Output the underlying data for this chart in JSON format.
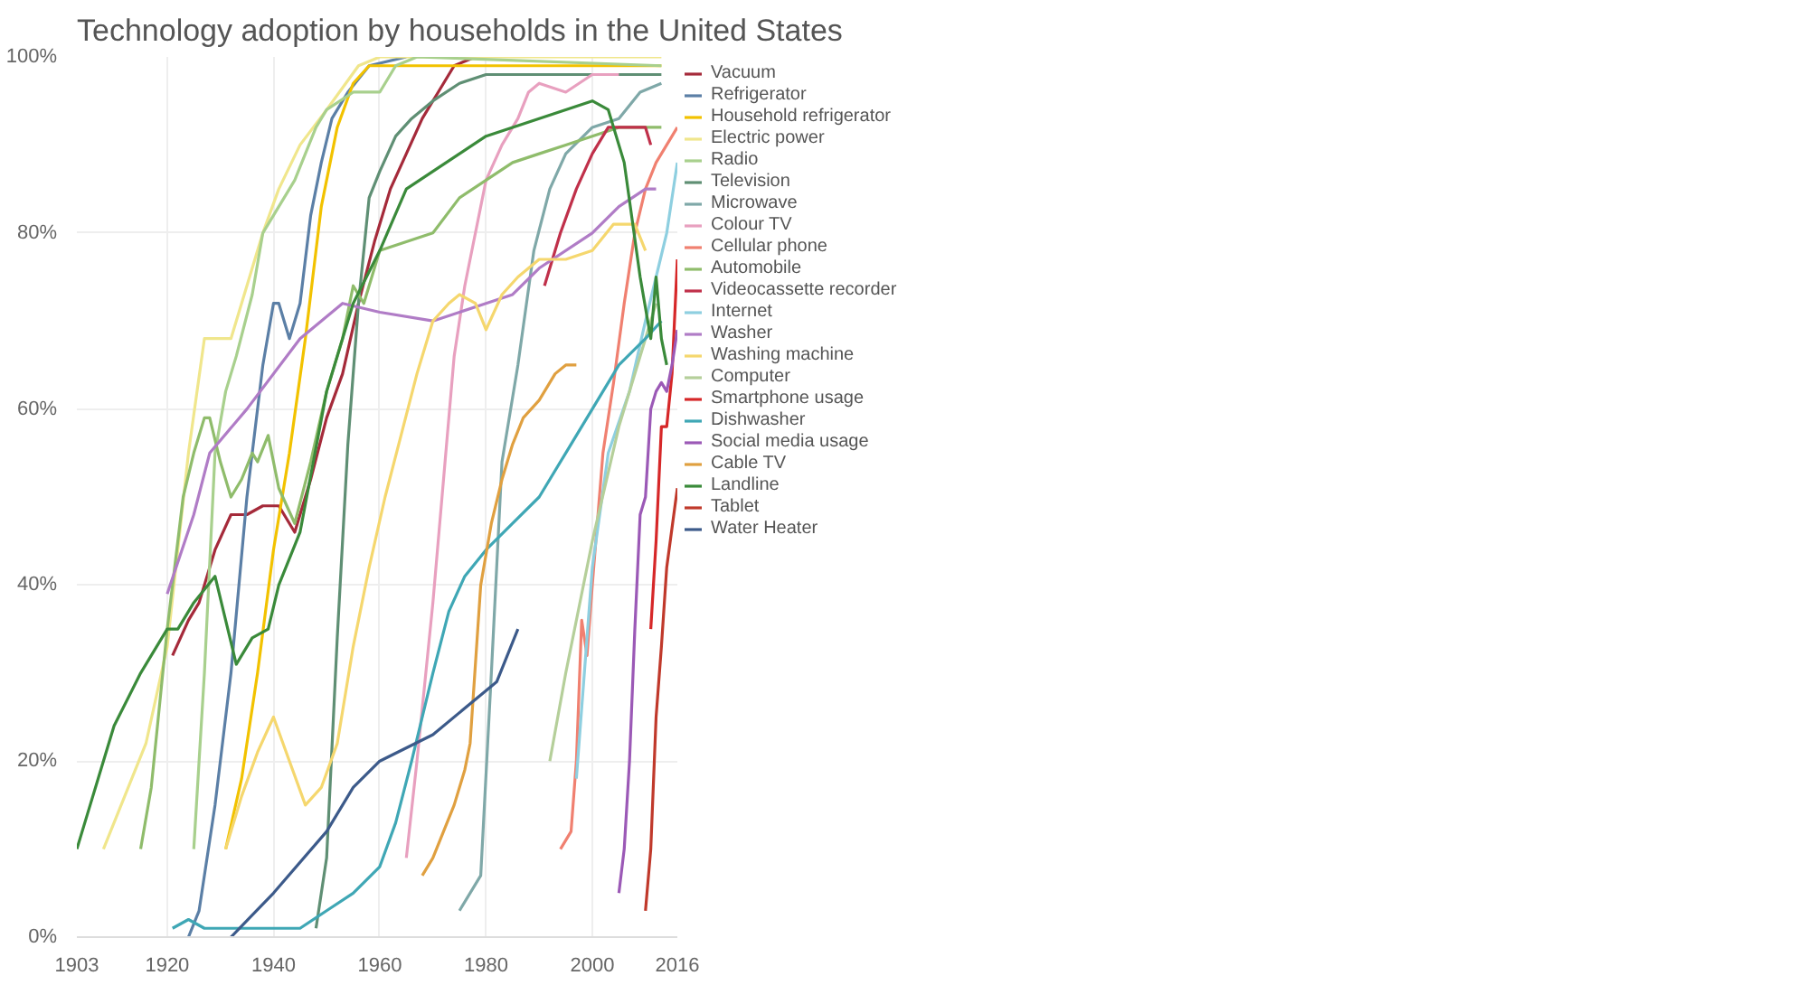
{
  "chart_data": {
    "type": "line",
    "title": "Technology adoption by households in the United States",
    "xlim": [
      1903,
      2016
    ],
    "xticks": [
      1903,
      1920,
      1940,
      1960,
      1980,
      2000,
      2016
    ],
    "ylim": [
      0,
      100
    ],
    "yticks": [
      {
        "value": 0,
        "label": "0%"
      },
      {
        "value": 20,
        "label": "20%"
      },
      {
        "value": 40,
        "label": "40%"
      },
      {
        "value": 60,
        "label": "60%"
      },
      {
        "value": 80,
        "label": "80%"
      },
      {
        "value": 100,
        "label": "100%"
      }
    ],
    "grid": true,
    "legend": "right",
    "marker": "none",
    "line_style": "solid",
    "series": [
      {
        "name": "Vacuum",
        "color": "#a52a3a",
        "x": [
          1921,
          1924,
          1926,
          1929,
          1932,
          1935,
          1938,
          1941,
          1944,
          1947,
          1950,
          1953,
          1956,
          1959,
          1962,
          1965,
          1968,
          1971,
          1974,
          1978
        ],
        "values": [
          32,
          36,
          38,
          44,
          48,
          48,
          49,
          49,
          46,
          52,
          59,
          64,
          72,
          79,
          85,
          89,
          93,
          96,
          99,
          100
        ]
      },
      {
        "name": "Refrigerator",
        "color": "#5b7fa6",
        "x": [
          1924,
          1926,
          1929,
          1932,
          1935,
          1938,
          1940,
          1941,
          1943,
          1945,
          1947,
          1949,
          1951,
          1954,
          1958,
          1965
        ],
        "values": [
          0,
          3,
          15,
          30,
          50,
          65,
          72,
          72,
          68,
          72,
          82,
          88,
          93,
          96,
          99,
          100
        ]
      },
      {
        "name": "Household refrigerator",
        "color": "#f2c200",
        "x": [
          1931,
          1934,
          1937,
          1940,
          1943,
          1946,
          1949,
          1952,
          1955,
          1958,
          2013
        ],
        "values": [
          10,
          18,
          30,
          44,
          55,
          68,
          83,
          92,
          97,
          99,
          99
        ]
      },
      {
        "name": "Electric power",
        "color": "#f0e68c",
        "x": [
          1908,
          1912,
          1916,
          1920,
          1924,
          1927,
          1930,
          1932,
          1935,
          1938,
          1941,
          1945,
          1950,
          1956,
          1960,
          2013
        ],
        "values": [
          10,
          16,
          22,
          33,
          55,
          68,
          68,
          68,
          74,
          80,
          85,
          90,
          94,
          99,
          100,
          100
        ]
      },
      {
        "name": "Radio",
        "color": "#a8d08d",
        "x": [
          1925,
          1927,
          1929,
          1931,
          1933,
          1936,
          1938,
          1940,
          1944,
          1948,
          1950,
          1955,
          1960,
          1963,
          1967,
          2013
        ],
        "values": [
          10,
          30,
          55,
          62,
          66,
          73,
          80,
          82,
          86,
          92,
          94,
          96,
          96,
          99,
          100,
          99
        ]
      },
      {
        "name": "Television",
        "color": "#5f8f74",
        "x": [
          1948,
          1950,
          1952,
          1954,
          1956,
          1958,
          1960,
          1963,
          1966,
          1970,
          1975,
          1980,
          1990,
          2000,
          2013
        ],
        "values": [
          1,
          9,
          34,
          56,
          72,
          84,
          87,
          91,
          93,
          95,
          97,
          98,
          98,
          98,
          98
        ]
      },
      {
        "name": "Microwave",
        "color": "#7fa8a8",
        "x": [
          1975,
          1979,
          1981,
          1983,
          1986,
          1989,
          1992,
          1995,
          2000,
          2005,
          2009,
          2013
        ],
        "values": [
          3,
          7,
          30,
          54,
          65,
          78,
          85,
          89,
          92,
          93,
          96,
          97
        ]
      },
      {
        "name": "Colour TV",
        "color": "#e8a0bf",
        "x": [
          1965,
          1967,
          1970,
          1972,
          1974,
          1976,
          1978,
          1980,
          1983,
          1986,
          1988,
          1990,
          1995,
          2000,
          2005
        ],
        "values": [
          9,
          20,
          38,
          52,
          66,
          74,
          80,
          86,
          90,
          93,
          96,
          97,
          96,
          98,
          98
        ]
      },
      {
        "name": "Cellular phone",
        "color": "#f08070",
        "x": [
          1994,
          1996,
          1997,
          1998,
          1999,
          2000,
          2002,
          2004,
          2006,
          2008,
          2010,
          2012,
          2014,
          2016
        ],
        "values": [
          10,
          12,
          20,
          36,
          32,
          40,
          55,
          63,
          72,
          80,
          85,
          88,
          90,
          92
        ]
      },
      {
        "name": "Automobile",
        "color": "#8fbc6b",
        "x": [
          1915,
          1917,
          1920,
          1923,
          1925,
          1927,
          1928,
          1930,
          1932,
          1934,
          1936,
          1937,
          1939,
          1941,
          1944,
          1947,
          1950,
          1953,
          1955,
          1957,
          1960,
          1965,
          1970,
          1975,
          1980,
          1985,
          1990,
          1995,
          2000,
          2005,
          2010,
          2013
        ],
        "values": [
          10,
          17,
          35,
          50,
          55,
          59,
          59,
          54,
          50,
          52,
          55,
          54,
          57,
          51,
          47,
          54,
          62,
          68,
          74,
          72,
          78,
          79,
          80,
          84,
          86,
          88,
          89,
          90,
          91,
          92,
          92,
          92
        ]
      },
      {
        "name": "Videocassette recorder",
        "color": "#c0304a",
        "x": [
          1991,
          1994,
          1997,
          2000,
          2003,
          2006,
          2010,
          2011
        ],
        "values": [
          74,
          80,
          85,
          89,
          92,
          92,
          92,
          90
        ]
      },
      {
        "name": "Internet",
        "color": "#8ecfe0",
        "x": [
          1997,
          2000,
          2003,
          2007,
          2010,
          2012,
          2014,
          2016
        ],
        "values": [
          18,
          42,
          55,
          62,
          70,
          75,
          80,
          88
        ]
      },
      {
        "name": "Washer",
        "color": "#b07cc6",
        "x": [
          1920,
          1925,
          1928,
          1935,
          1945,
          1953,
          1960,
          1970,
          1980,
          1985,
          1990,
          2000,
          2005,
          2010,
          2012
        ],
        "values": [
          39,
          48,
          55,
          60,
          68,
          72,
          71,
          70,
          72,
          73,
          76,
          80,
          83,
          85,
          85
        ]
      },
      {
        "name": "Washing machine",
        "color": "#f5d76e",
        "x": [
          1931,
          1934,
          1937,
          1940,
          1943,
          1946,
          1949,
          1952,
          1955,
          1958,
          1961,
          1964,
          1967,
          1970,
          1973,
          1975,
          1978,
          1980,
          1983,
          1986,
          1990,
          1995,
          2000,
          2004,
          2008,
          2010
        ],
        "values": [
          10,
          16,
          21,
          25,
          20,
          15,
          17,
          22,
          33,
          42,
          50,
          57,
          64,
          70,
          72,
          73,
          72,
          69,
          73,
          75,
          77,
          77,
          78,
          81,
          81,
          78
        ]
      },
      {
        "name": "Computer",
        "color": "#b5cf9a",
        "x": [
          1992,
          1995,
          2000,
          2005,
          2010,
          2012
        ],
        "values": [
          20,
          30,
          45,
          58,
          68,
          72
        ]
      },
      {
        "name": "Smartphone usage",
        "color": "#d62728",
        "x": [
          2011,
          2012,
          2013,
          2014,
          2015,
          2016
        ],
        "values": [
          35,
          45,
          58,
          58,
          64,
          77
        ]
      },
      {
        "name": "Dishwasher",
        "color": "#3fa7b5",
        "x": [
          1921,
          1924,
          1927,
          1930,
          1935,
          1940,
          1945,
          1950,
          1955,
          1960,
          1963,
          1966,
          1970,
          1973,
          1976,
          1980,
          1985,
          1990,
          1995,
          2000,
          2005,
          2010,
          2013
        ],
        "values": [
          1,
          2,
          1,
          1,
          1,
          1,
          1,
          3,
          5,
          8,
          13,
          20,
          30,
          37,
          41,
          44,
          47,
          50,
          55,
          60,
          65,
          68,
          70
        ]
      },
      {
        "name": "Social media usage",
        "color": "#9b59b6",
        "x": [
          2005,
          2006,
          2007,
          2008,
          2009,
          2010,
          2011,
          2012,
          2013,
          2014,
          2015,
          2016
        ],
        "values": [
          5,
          10,
          20,
          35,
          48,
          50,
          60,
          62,
          63,
          62,
          65,
          69
        ]
      },
      {
        "name": "Cable TV",
        "color": "#e0a040",
        "x": [
          1968,
          1970,
          1972,
          1974,
          1976,
          1977,
          1979,
          1981,
          1983,
          1985,
          1987,
          1990,
          1993,
          1995,
          1997
        ],
        "values": [
          7,
          9,
          12,
          15,
          19,
          22,
          40,
          47,
          52,
          56,
          59,
          61,
          64,
          65,
          65
        ]
      },
      {
        "name": "Landline",
        "color": "#3a8a3a",
        "x": [
          1903,
          1905,
          1907,
          1910,
          1915,
          1920,
          1922,
          1925,
          1929,
          1931,
          1933,
          1936,
          1939,
          1941,
          1945,
          1950,
          1955,
          1960,
          1965,
          1970,
          1975,
          1980,
          1985,
          1990,
          1995,
          2000,
          2003,
          2006,
          2009,
          2011,
          2012,
          2013,
          2014
        ],
        "values": [
          10,
          14,
          18,
          24,
          30,
          35,
          35,
          38,
          41,
          36,
          31,
          34,
          35,
          40,
          46,
          62,
          72,
          78,
          85,
          87,
          89,
          91,
          92,
          93,
          94,
          95,
          94,
          88,
          75,
          68,
          75,
          68,
          65
        ]
      },
      {
        "name": "Tablet",
        "color": "#c0392b",
        "x": [
          2010,
          2011,
          2012,
          2013,
          2014,
          2016
        ],
        "values": [
          3,
          10,
          25,
          33,
          42,
          51
        ]
      },
      {
        "name": "Water Heater",
        "color": "#3c5a8a",
        "x": [
          1932,
          1940,
          1950,
          1955,
          1960,
          1970,
          1980,
          1982,
          1986
        ],
        "values": [
          0,
          5,
          12,
          17,
          20,
          23,
          28,
          29,
          35
        ]
      }
    ]
  }
}
